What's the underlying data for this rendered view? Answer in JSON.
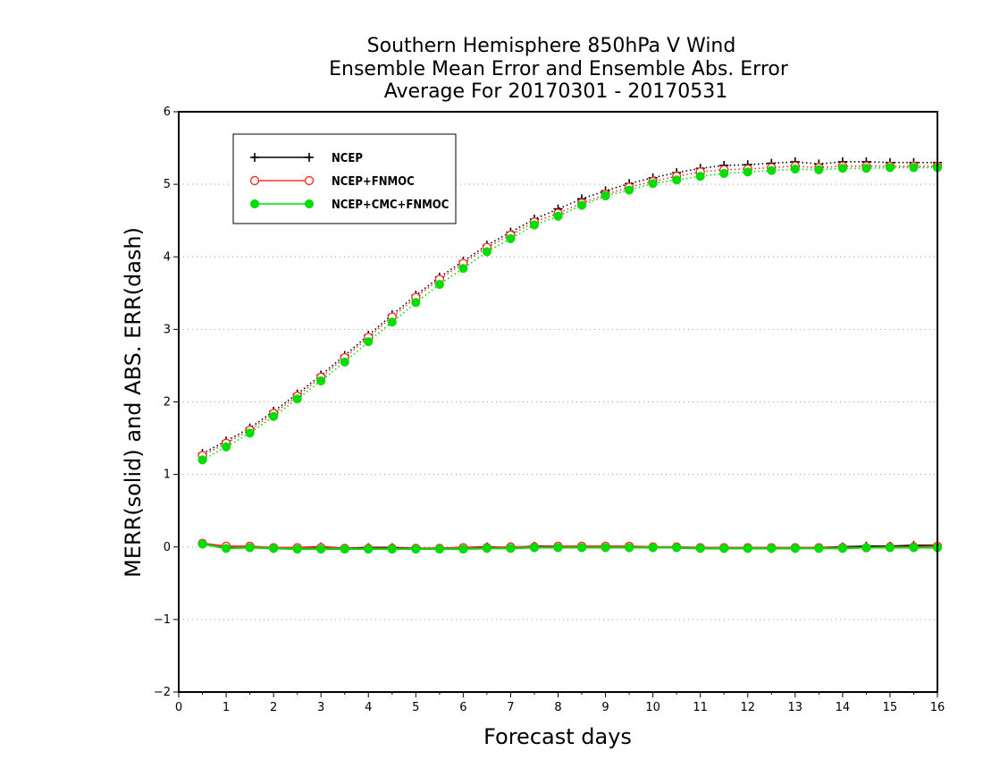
{
  "chart_data": {
    "type": "line",
    "title": [
      "Southern Hemisphere 850hPa V Wind",
      "Ensemble Mean Error and Ensemble Abs. Error",
      "Average For 20170301 - 20170531"
    ],
    "xlabel": "Forecast days",
    "ylabel": "MERR(solid) and ABS. ERR(dash)",
    "xlim": [
      0,
      16
    ],
    "ylim": [
      -2,
      6
    ],
    "xticks": [
      0,
      1,
      2,
      3,
      4,
      5,
      6,
      7,
      8,
      9,
      10,
      11,
      12,
      13,
      14,
      15,
      16
    ],
    "yticks": [
      -2,
      -1,
      0,
      1,
      2,
      3,
      4,
      5,
      6
    ],
    "grid": "horizontal dotted",
    "legend_position": "top-left",
    "x": [
      0.5,
      1,
      1.5,
      2,
      2.5,
      3,
      3.5,
      4,
      4.5,
      5,
      5.5,
      6,
      6.5,
      7,
      7.5,
      8,
      8.5,
      9,
      9.5,
      10,
      10.5,
      11,
      11.5,
      12,
      12.5,
      13,
      13.5,
      14,
      14.5,
      15,
      15.5,
      16
    ],
    "series": [
      {
        "name": "NCEP",
        "color": "#000000",
        "marker": "plus",
        "abs_err": [
          1.29,
          1.46,
          1.64,
          1.87,
          2.11,
          2.37,
          2.64,
          2.92,
          3.2,
          3.47,
          3.72,
          3.94,
          4.16,
          4.34,
          4.52,
          4.66,
          4.8,
          4.91,
          5.01,
          5.09,
          5.16,
          5.22,
          5.26,
          5.27,
          5.29,
          5.31,
          5.28,
          5.31,
          5.31,
          5.3,
          5.3,
          5.3
        ],
        "merr": [
          0.04,
          0.0,
          0.0,
          -0.02,
          -0.01,
          0.0,
          -0.02,
          -0.01,
          -0.01,
          -0.02,
          -0.02,
          -0.01,
          0.0,
          -0.01,
          0.01,
          0.01,
          0.01,
          0.01,
          0.0,
          -0.01,
          -0.01,
          -0.02,
          -0.02,
          -0.02,
          -0.02,
          -0.02,
          -0.01,
          0.0,
          0.01,
          0.01,
          0.02,
          0.02
        ]
      },
      {
        "name": "NCEP+FNMOC",
        "color": "#ff3030",
        "marker": "open-circle",
        "abs_err": [
          1.26,
          1.43,
          1.61,
          1.84,
          2.08,
          2.34,
          2.61,
          2.89,
          3.17,
          3.44,
          3.69,
          3.91,
          4.13,
          4.3,
          4.48,
          4.6,
          4.74,
          4.86,
          4.96,
          5.04,
          5.11,
          5.17,
          5.2,
          5.21,
          5.23,
          5.25,
          5.23,
          5.25,
          5.25,
          5.25,
          5.25,
          5.25
        ],
        "merr": [
          0.05,
          0.01,
          0.01,
          -0.01,
          -0.01,
          -0.01,
          -0.02,
          -0.02,
          -0.02,
          -0.02,
          -0.02,
          -0.01,
          -0.01,
          0.0,
          0.0,
          0.01,
          0.01,
          0.01,
          0.01,
          0.0,
          0.0,
          -0.01,
          -0.01,
          -0.01,
          -0.01,
          -0.01,
          -0.01,
          -0.01,
          -0.01,
          0.0,
          0.0,
          0.01
        ]
      },
      {
        "name": "NCEP+CMC+FNMOC",
        "color": "#00dd00",
        "marker": "filled-circle",
        "abs_err": [
          1.2,
          1.38,
          1.57,
          1.8,
          2.04,
          2.29,
          2.55,
          2.83,
          3.1,
          3.37,
          3.62,
          3.84,
          4.07,
          4.25,
          4.44,
          4.56,
          4.71,
          4.84,
          4.92,
          5.01,
          5.06,
          5.11,
          5.15,
          5.17,
          5.19,
          5.21,
          5.2,
          5.22,
          5.22,
          5.23,
          5.23,
          5.23
        ],
        "merr": [
          0.04,
          -0.02,
          -0.01,
          -0.02,
          -0.03,
          -0.03,
          -0.03,
          -0.03,
          -0.03,
          -0.03,
          -0.03,
          -0.03,
          -0.02,
          -0.02,
          -0.01,
          -0.01,
          -0.01,
          -0.01,
          -0.01,
          -0.01,
          -0.01,
          -0.02,
          -0.02,
          -0.02,
          -0.02,
          -0.02,
          -0.02,
          -0.02,
          -0.01,
          -0.01,
          -0.01,
          -0.01
        ]
      }
    ]
  }
}
